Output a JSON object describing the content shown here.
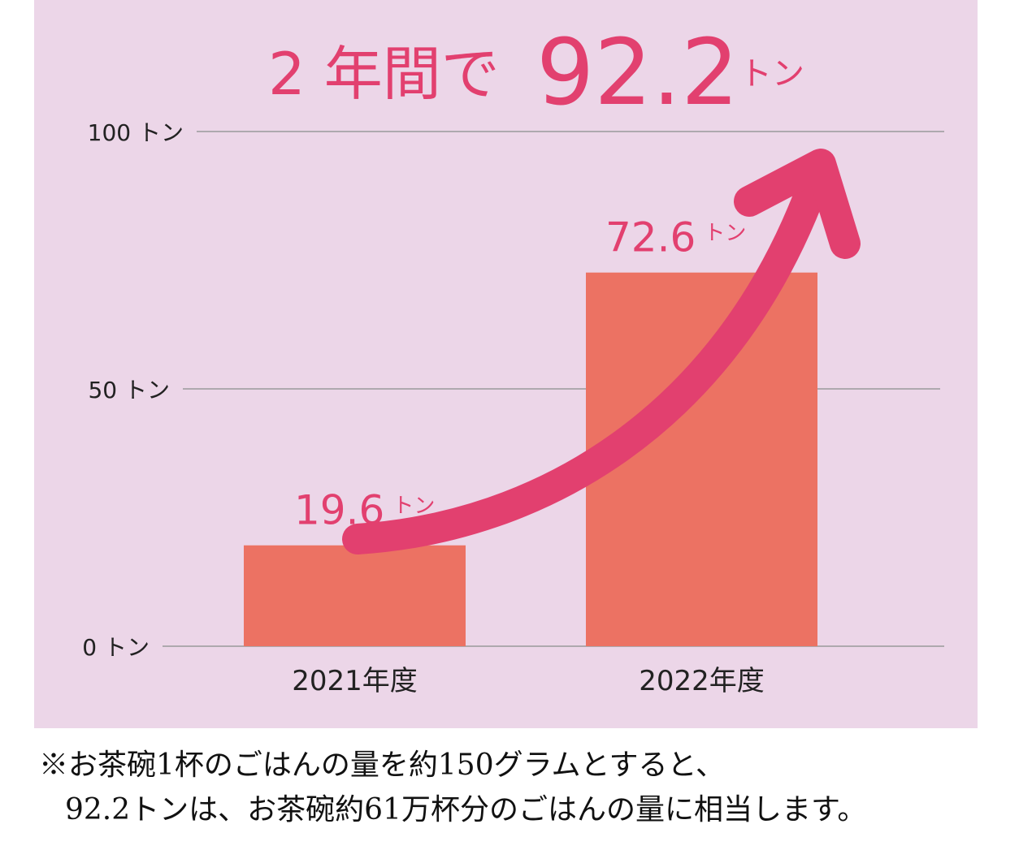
{
  "colors": {
    "background": "#ecd6e8",
    "bar": "#ec7263",
    "accent": "#e2406f",
    "grid": "#9a9a9a",
    "axis_text": "#222222"
  },
  "headline": {
    "prefix": "2 年間で",
    "value": "92.2",
    "unit": "トン"
  },
  "chart_data": {
    "type": "bar",
    "categories": [
      "2021年度",
      "2022年度"
    ],
    "values": [
      19.6,
      72.6
    ],
    "value_labels": [
      "19.6",
      "72.6"
    ],
    "value_unit": "トン",
    "ylim": [
      0,
      100
    ],
    "y_ticks": [
      {
        "value": 0,
        "label": "0 トン"
      },
      {
        "value": 50,
        "label": "50 トン"
      },
      {
        "value": 100,
        "label": "100 トン"
      }
    ],
    "grid": true,
    "title": "",
    "xlabel": "",
    "ylabel": "",
    "annotation": "growth-arrow"
  },
  "notes": {
    "line1": "※お茶碗1杯のごはんの量を約150グラムとすると、",
    "line2": "92.2トンは、お茶碗約61万杯分のごはんの量に相当します。"
  }
}
